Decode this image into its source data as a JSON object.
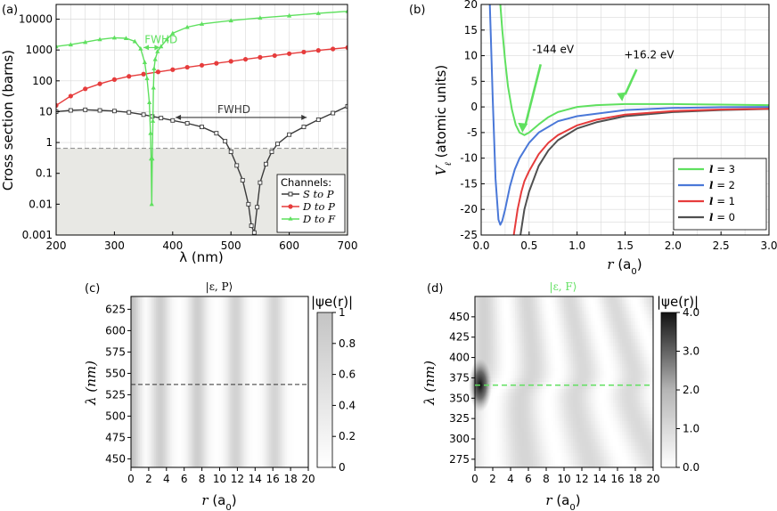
{
  "colors": {
    "s_to_p": "#3a3a3a",
    "d_to_p": "#e63c3c",
    "d_to_f": "#5fe05f",
    "l3": "#5fe05f",
    "l2": "#4a78d8",
    "l1": "#e63c3c",
    "l0": "#505050",
    "grid": "#d9d9d9",
    "shade": "#e8e8e4"
  },
  "chart_data": [
    {
      "panel": "(a)",
      "type": "line",
      "xlabel": "λ (nm)",
      "ylabel": "Cross section (barns)",
      "xlim": [
        200,
        700
      ],
      "ylim": [
        0.001,
        30000
      ],
      "yscale": "log",
      "xticks": [
        "200",
        "300",
        "400",
        "500",
        "600",
        "700"
      ],
      "yticks": [
        "0.001",
        "0.01",
        "0.1",
        "1",
        "10",
        "100",
        "1000",
        "10000"
      ],
      "shaded_below": 0.65,
      "legend": {
        "title": "Channels:",
        "placement": "bottom-right"
      },
      "series": [
        {
          "key": "s_to_p",
          "label": "S to P",
          "x": [
            200,
            225,
            250,
            275,
            300,
            325,
            350,
            365,
            380,
            400,
            425,
            450,
            475,
            490,
            500,
            510,
            520,
            530,
            535,
            540,
            545,
            550,
            560,
            570,
            580,
            600,
            625,
            650,
            675,
            700
          ],
          "y": [
            10,
            11,
            11.5,
            11,
            10.5,
            9.5,
            8,
            7,
            6.2,
            5.2,
            4.2,
            3.2,
            2,
            1.1,
            0.5,
            0.18,
            0.06,
            0.01,
            0.002,
            0.0012,
            0.008,
            0.05,
            0.2,
            0.5,
            0.9,
            1.8,
            3.2,
            5.5,
            9,
            15
          ]
        },
        {
          "key": "d_to_p",
          "label": "D to P",
          "x": [
            200,
            225,
            250,
            275,
            300,
            325,
            350,
            375,
            400,
            425,
            450,
            475,
            500,
            525,
            550,
            575,
            600,
            625,
            650,
            675,
            700
          ],
          "y": [
            16,
            32,
            55,
            80,
            110,
            140,
            165,
            195,
            230,
            275,
            320,
            370,
            430,
            500,
            580,
            660,
            760,
            860,
            970,
            1080,
            1200
          ]
        },
        {
          "key": "d_to_f",
          "label": "D to F",
          "x": [
            200,
            225,
            250,
            275,
            300,
            320,
            335,
            345,
            352,
            356,
            360,
            362,
            363,
            364,
            365,
            366,
            367,
            368,
            370,
            374,
            380,
            390,
            400,
            425,
            450,
            500,
            550,
            600,
            650,
            700
          ],
          "y": [
            1300,
            1500,
            1800,
            2200,
            2500,
            2400,
            1900,
            1100,
            400,
            120,
            20,
            2,
            0.3,
            0.01,
            0.3,
            5,
            60,
            250,
            500,
            900,
            1300,
            2200,
            3500,
            5500,
            7000,
            9000,
            11000,
            13000,
            15500,
            18000
          ]
        }
      ],
      "annotations": [
        {
          "text": "FWHD",
          "x": 380,
          "y": 1200,
          "color_key": "d_to_f",
          "span": [
            350,
            378
          ]
        },
        {
          "text": "FWHD",
          "x": 505,
          "y": 6.5,
          "color_key": "s_to_p",
          "span": [
            405,
            630
          ]
        }
      ]
    },
    {
      "panel": "(b)",
      "type": "line",
      "xlabel": "r (a0)",
      "ylabel": "V_ℓ (atomic units)",
      "xlim": [
        0,
        3
      ],
      "ylim": [
        -25,
        20
      ],
      "xticks": [
        "0.0",
        "0.5",
        "1.0",
        "1.5",
        "2.0",
        "2.5",
        "3.0"
      ],
      "yticks": [
        "-25",
        "-20",
        "-15",
        "-10",
        "-5",
        "0",
        "5",
        "10",
        "15",
        "20"
      ],
      "legend": {
        "placement": "bottom-right"
      },
      "series": [
        {
          "key": "l3",
          "label": "= 3",
          "x": [
            0.2,
            0.22,
            0.25,
            0.28,
            0.32,
            0.36,
            0.4,
            0.45,
            0.5,
            0.6,
            0.7,
            0.8,
            1.0,
            1.2,
            1.5,
            2.0,
            2.5,
            3.0
          ],
          "y": [
            20,
            15,
            9,
            4,
            -0.5,
            -3.5,
            -5,
            -5.5,
            -5,
            -3.4,
            -2,
            -1,
            0,
            0.35,
            0.55,
            0.55,
            0.45,
            0.35
          ]
        },
        {
          "key": "l2",
          "label": "= 2",
          "x": [
            0.09,
            0.1,
            0.12,
            0.15,
            0.18,
            0.2,
            0.22,
            0.25,
            0.3,
            0.35,
            0.4,
            0.5,
            0.6,
            0.8,
            1.0,
            1.5,
            2.0,
            2.5,
            3.0
          ],
          "y": [
            20,
            14,
            2,
            -14,
            -22,
            -23,
            -22.2,
            -20,
            -15.5,
            -12.2,
            -10,
            -7,
            -5,
            -2.8,
            -1.8,
            -0.6,
            -0.2,
            -0.05,
            0
          ]
        },
        {
          "key": "l1",
          "label": "= 1",
          "x": [
            0.34,
            0.38,
            0.42,
            0.45,
            0.5,
            0.6,
            0.7,
            0.8,
            1.0,
            1.2,
            1.5,
            2.0,
            2.5,
            3.0
          ],
          "y": [
            -25,
            -20,
            -16.5,
            -14.5,
            -12.5,
            -9.2,
            -7,
            -5.5,
            -3.6,
            -2.5,
            -1.5,
            -0.8,
            -0.5,
            -0.35
          ]
        },
        {
          "key": "l0",
          "label": "= 0",
          "x": [
            0.41,
            0.45,
            0.5,
            0.6,
            0.7,
            0.8,
            1.0,
            1.2,
            1.5,
            2.0,
            2.5,
            3.0
          ],
          "y": [
            -25,
            -20,
            -16.5,
            -11.5,
            -8.5,
            -6.5,
            -4.2,
            -3,
            -1.8,
            -1,
            -0.6,
            -0.4
          ]
        }
      ],
      "annotations": [
        {
          "text": "-144 eV",
          "x": 0.75,
          "y": 10.5,
          "color_key": "l3"
        },
        {
          "text": "+16.2 eV",
          "x": 1.75,
          "y": 9.5,
          "color_key": "l3"
        }
      ]
    },
    {
      "panel": "(c)",
      "type": "heatmap",
      "title": "|ε, P⟩",
      "xlabel": "r (a0)",
      "ylabel": "λ (nm)",
      "xlim": [
        0,
        20
      ],
      "ylim": [
        440,
        640
      ],
      "xticks": [
        "0",
        "2",
        "4",
        "6",
        "8",
        "10",
        "12",
        "14",
        "16",
        "18",
        "20"
      ],
      "yticks": [
        "450",
        "475",
        "500",
        "525",
        "550",
        "575",
        "600",
        "625"
      ],
      "colorbar": {
        "label": "|ψe(r)|",
        "ticks": [
          "0",
          "0.2",
          "0.4",
          "0.6",
          "0.8",
          "1"
        ],
        "range": [
          0,
          1
        ]
      },
      "stripes_r": [
        0.0,
        3.3,
        7.5,
        11.8,
        16.2
      ],
      "stripe_intensity": [
        0.45,
        0.35,
        0.35,
        0.32,
        0.3
      ],
      "marker_line": {
        "y": 537,
        "style": "dashed",
        "color_key": "s_to_p"
      }
    },
    {
      "panel": "(d)",
      "type": "heatmap",
      "title": "|ε, F⟩",
      "xlabel": "r (a0)",
      "ylabel": "λ (nm)",
      "xlim": [
        0,
        20
      ],
      "ylim": [
        265,
        475
      ],
      "xticks": [
        "0",
        "2",
        "4",
        "6",
        "8",
        "10",
        "12",
        "14",
        "16",
        "18",
        "20"
      ],
      "yticks": [
        "275",
        "300",
        "325",
        "350",
        "375",
        "400",
        "425",
        "450"
      ],
      "colorbar": {
        "label": "|ψe(r)|",
        "ticks": [
          "0.0",
          "1.0",
          "2.0",
          "3.0",
          "4.0"
        ],
        "range": [
          0,
          4
        ]
      },
      "resonance_y": 366,
      "marker_line": {
        "y": 366,
        "style": "dashed",
        "color_key": "d_to_f"
      }
    }
  ]
}
